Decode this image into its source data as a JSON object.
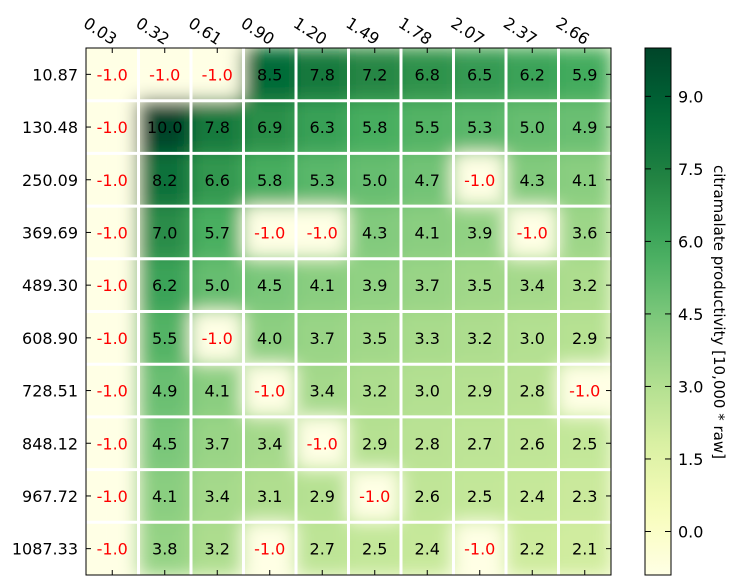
{
  "chart_data": {
    "type": "heatmap",
    "x_tick_labels": [
      "0.03",
      "0.32",
      "0.61",
      "0.90",
      "1.20",
      "1.49",
      "1.78",
      "2.07",
      "2.37",
      "2.66"
    ],
    "y_tick_labels": [
      "10.87",
      "130.48",
      "250.09",
      "369.69",
      "489.30",
      "608.90",
      "728.51",
      "848.12",
      "967.72",
      "1087.33"
    ],
    "values": [
      [
        -1.0,
        -1.0,
        -1.0,
        8.5,
        7.8,
        7.2,
        6.8,
        6.5,
        6.2,
        5.9
      ],
      [
        -1.0,
        10.0,
        7.8,
        6.9,
        6.3,
        5.8,
        5.5,
        5.3,
        5.0,
        4.9
      ],
      [
        -1.0,
        8.2,
        6.6,
        5.8,
        5.3,
        5.0,
        4.7,
        -1.0,
        4.3,
        4.1
      ],
      [
        -1.0,
        7.0,
        5.7,
        -1.0,
        -1.0,
        4.3,
        4.1,
        3.9,
        -1.0,
        3.6
      ],
      [
        -1.0,
        6.2,
        5.0,
        4.5,
        4.1,
        3.9,
        3.7,
        3.5,
        3.4,
        3.2
      ],
      [
        -1.0,
        5.5,
        -1.0,
        4.0,
        3.7,
        3.5,
        3.3,
        3.2,
        3.0,
        2.9
      ],
      [
        -1.0,
        4.9,
        4.1,
        -1.0,
        3.4,
        3.2,
        3.0,
        2.9,
        2.8,
        -1.0
      ],
      [
        -1.0,
        4.5,
        3.7,
        3.4,
        -1.0,
        2.9,
        2.8,
        2.7,
        2.6,
        2.5
      ],
      [
        -1.0,
        4.1,
        3.4,
        3.1,
        2.9,
        -1.0,
        2.6,
        2.5,
        2.4,
        2.3
      ],
      [
        -1.0,
        3.8,
        3.2,
        -1.0,
        2.7,
        2.5,
        2.4,
        -1.0,
        2.2,
        2.1
      ]
    ],
    "colorbar": {
      "label": "citramalate productivity [10,000 * raw]",
      "ticks": [
        "0.0",
        "1.5",
        "3.0",
        "4.5",
        "6.0",
        "7.5",
        "9.0"
      ],
      "tick_values": [
        0.0,
        1.5,
        3.0,
        4.5,
        6.0,
        7.5,
        9.0
      ],
      "range": [
        -0.9,
        10.0
      ],
      "colormap": "YlGn"
    },
    "missing_value_color": "#ff0000",
    "cell_text_color": "#000000",
    "grid_color": "#ffffff",
    "xlabel": "",
    "ylabel": "",
    "title": ""
  }
}
